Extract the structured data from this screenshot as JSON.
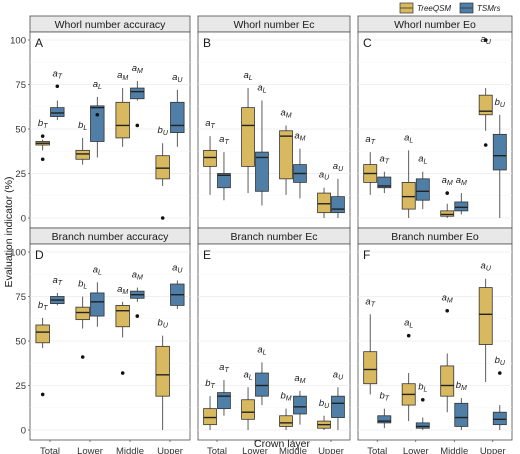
{
  "legend": [
    {
      "name": "TreeQSM",
      "color": "#d9b95f"
    },
    {
      "name": "TSMrs",
      "color": "#4f7fa6"
    }
  ],
  "chart_data": {
    "type": "boxplot",
    "xlabel": "Crown layer",
    "ylabel": "Evaluation indicator (%)",
    "categories": [
      "Total",
      "Lower",
      "Middle",
      "Upper"
    ],
    "yticks": [
      0,
      25,
      50,
      75,
      100
    ],
    "ylim": [
      0,
      100
    ],
    "legend_position": "top-right",
    "grid": true,
    "panels": [
      {
        "tag": "A",
        "title": "Whorl number accuracy",
        "boxes": [
          {
            "cat": "Total",
            "series": "TreeQSM",
            "lo": 38,
            "q1": 41,
            "med": 42,
            "q3": 43,
            "hi": 44,
            "outliers": [
              46,
              33
            ],
            "label": "bT"
          },
          {
            "cat": "Total",
            "series": "TSMrs",
            "lo": 55,
            "q1": 57,
            "med": 59,
            "q3": 62,
            "hi": 66,
            "outliers": [
              74
            ],
            "label": "aT"
          },
          {
            "cat": "Lower",
            "series": "TreeQSM",
            "lo": 30,
            "q1": 33,
            "med": 36,
            "q3": 38,
            "hi": 45,
            "outliers": [],
            "label": "bL"
          },
          {
            "cat": "Lower",
            "series": "TSMrs",
            "lo": 34,
            "q1": 43,
            "med": 62,
            "q3": 63,
            "hi": 68,
            "outliers": [
              58
            ],
            "label": "aL"
          },
          {
            "cat": "Middle",
            "series": "TreeQSM",
            "lo": 40,
            "q1": 45,
            "med": 52,
            "q3": 65,
            "hi": 73,
            "outliers": [],
            "label": "aM"
          },
          {
            "cat": "Middle",
            "series": "TSMrs",
            "lo": 66,
            "q1": 67,
            "med": 71,
            "q3": 73,
            "hi": 77,
            "outliers": [
              52
            ],
            "label": "aM"
          },
          {
            "cat": "Upper",
            "series": "TreeQSM",
            "lo": 18,
            "q1": 22,
            "med": 28,
            "q3": 35,
            "hi": 42,
            "outliers": [
              0
            ],
            "label": "bU"
          },
          {
            "cat": "Upper",
            "series": "TSMrs",
            "lo": 40,
            "q1": 48,
            "med": 52,
            "q3": 65,
            "hi": 72,
            "outliers": [],
            "label": "aU"
          }
        ]
      },
      {
        "tag": "B",
        "title": "Whorl number Ec",
        "boxes": [
          {
            "cat": "Total",
            "series": "TreeQSM",
            "lo": 13,
            "q1": 29,
            "med": 34,
            "q3": 38,
            "hi": 46,
            "outliers": [],
            "label": "aT"
          },
          {
            "cat": "Total",
            "series": "TSMrs",
            "lo": 10,
            "q1": 17,
            "med": 24,
            "q3": 25,
            "hi": 37,
            "outliers": [],
            "label": "aT"
          },
          {
            "cat": "Lower",
            "series": "TreeQSM",
            "lo": 14,
            "q1": 29,
            "med": 52,
            "q3": 62,
            "hi": 73,
            "outliers": [],
            "label": "aL"
          },
          {
            "cat": "Lower",
            "series": "TSMrs",
            "lo": 7,
            "q1": 15,
            "med": 34,
            "q3": 37,
            "hi": 66,
            "outliers": [],
            "label": "aL"
          },
          {
            "cat": "Middle",
            "series": "TreeQSM",
            "lo": 13,
            "q1": 22,
            "med": 46,
            "q3": 49,
            "hi": 52,
            "outliers": [],
            "label": "aM"
          },
          {
            "cat": "Middle",
            "series": "TSMrs",
            "lo": 11,
            "q1": 20,
            "med": 25,
            "q3": 30,
            "hi": 39,
            "outliers": [],
            "label": "aM"
          },
          {
            "cat": "Upper",
            "series": "TreeQSM",
            "lo": 0,
            "q1": 3,
            "med": 8,
            "q3": 14,
            "hi": 17,
            "outliers": [],
            "label": "aU"
          },
          {
            "cat": "Upper",
            "series": "TSMrs",
            "lo": 0,
            "q1": 3,
            "med": 5,
            "q3": 12,
            "hi": 22,
            "outliers": [],
            "label": "aU"
          }
        ]
      },
      {
        "tag": "C",
        "title": "Whorl number Eo",
        "boxes": [
          {
            "cat": "Total",
            "series": "TreeQSM",
            "lo": 13,
            "q1": 20,
            "med": 25,
            "q3": 30,
            "hi": 37,
            "outliers": [],
            "label": "aT"
          },
          {
            "cat": "Total",
            "series": "TSMrs",
            "lo": 14,
            "q1": 17,
            "med": 18,
            "q3": 23,
            "hi": 26,
            "outliers": [],
            "label": "aT"
          },
          {
            "cat": "Lower",
            "series": "TreeQSM",
            "lo": 0,
            "q1": 5,
            "med": 12,
            "q3": 20,
            "hi": 38,
            "outliers": [],
            "label": "aL"
          },
          {
            "cat": "Lower",
            "series": "TSMrs",
            "lo": 5,
            "q1": 10,
            "med": 15,
            "q3": 22,
            "hi": 26,
            "outliers": [],
            "label": "aL"
          },
          {
            "cat": "Middle",
            "series": "TreeQSM",
            "lo": 0,
            "q1": 1,
            "med": 2,
            "q3": 4,
            "hi": 8,
            "outliers": [
              14
            ],
            "label": "aM"
          },
          {
            "cat": "Middle",
            "series": "TSMrs",
            "lo": 2,
            "q1": 4,
            "med": 6,
            "q3": 9,
            "hi": 14,
            "outliers": [],
            "label": "aM"
          },
          {
            "cat": "Upper",
            "series": "TreeQSM",
            "lo": 49,
            "q1": 58,
            "med": 60,
            "q3": 69,
            "hi": 73,
            "outliers": [
              100,
              41
            ],
            "label": "aU"
          },
          {
            "cat": "Upper",
            "series": "TSMrs",
            "lo": 0,
            "q1": 27,
            "med": 35,
            "q3": 47,
            "hi": 58,
            "outliers": [],
            "label": "bU"
          }
        ]
      },
      {
        "tag": "D",
        "title": "Branch number accuracy",
        "boxes": [
          {
            "cat": "Total",
            "series": "TreeQSM",
            "lo": 46,
            "q1": 49,
            "med": 55,
            "q3": 59,
            "hi": 63,
            "outliers": [
              20
            ],
            "label": "bT"
          },
          {
            "cat": "Total",
            "series": "TSMrs",
            "lo": 70,
            "q1": 71,
            "med": 73,
            "q3": 75,
            "hi": 77,
            "outliers": [],
            "label": "aT"
          },
          {
            "cat": "Lower",
            "series": "TreeQSM",
            "lo": 57,
            "q1": 62,
            "med": 66,
            "q3": 69,
            "hi": 75,
            "outliers": [
              41
            ],
            "label": "bL"
          },
          {
            "cat": "Lower",
            "series": "TSMrs",
            "lo": 58,
            "q1": 64,
            "med": 72,
            "q3": 77,
            "hi": 83,
            "outliers": [],
            "label": "aL"
          },
          {
            "cat": "Middle",
            "series": "TreeQSM",
            "lo": 52,
            "q1": 58,
            "med": 67,
            "q3": 70,
            "hi": 72,
            "outliers": [
              32
            ],
            "label": "aM"
          },
          {
            "cat": "Middle",
            "series": "TSMrs",
            "lo": 72,
            "q1": 74,
            "med": 76,
            "q3": 78,
            "hi": 80,
            "outliers": [
              64
            ],
            "label": "aM"
          },
          {
            "cat": "Upper",
            "series": "TreeQSM",
            "lo": 0,
            "q1": 19,
            "med": 31,
            "q3": 47,
            "hi": 53,
            "outliers": [],
            "label": "bU"
          },
          {
            "cat": "Upper",
            "series": "TSMrs",
            "lo": 68,
            "q1": 70,
            "med": 76,
            "q3": 82,
            "hi": 84,
            "outliers": [],
            "label": "aU"
          }
        ]
      },
      {
        "tag": "E",
        "title": "Branch number Ec",
        "boxes": [
          {
            "cat": "Total",
            "series": "TreeQSM",
            "lo": 0,
            "q1": 3,
            "med": 7,
            "q3": 12,
            "hi": 19,
            "outliers": [],
            "label": "bT"
          },
          {
            "cat": "Total",
            "series": "TSMrs",
            "lo": 8,
            "q1": 12,
            "med": 19,
            "q3": 21,
            "hi": 28,
            "outliers": [],
            "label": "aT"
          },
          {
            "cat": "Lower",
            "series": "TreeQSM",
            "lo": 0,
            "q1": 6,
            "med": 10,
            "q3": 17,
            "hi": 24,
            "outliers": [],
            "label": "aL"
          },
          {
            "cat": "Lower",
            "series": "TSMrs",
            "lo": 14,
            "q1": 19,
            "med": 25,
            "q3": 32,
            "hi": 38,
            "outliers": [],
            "label": "aL"
          },
          {
            "cat": "Middle",
            "series": "TreeQSM",
            "lo": 0,
            "q1": 2,
            "med": 4,
            "q3": 8,
            "hi": 12,
            "outliers": [],
            "label": "bM"
          },
          {
            "cat": "Middle",
            "series": "TSMrs",
            "lo": 3,
            "q1": 9,
            "med": 13,
            "q3": 19,
            "hi": 22,
            "outliers": [],
            "label": "aM"
          },
          {
            "cat": "Upper",
            "series": "TreeQSM",
            "lo": 0,
            "q1": 1,
            "med": 3,
            "q3": 5,
            "hi": 8,
            "outliers": [],
            "label": "bU"
          },
          {
            "cat": "Upper",
            "series": "TSMrs",
            "lo": 0,
            "q1": 7,
            "med": 15,
            "q3": 19,
            "hi": 24,
            "outliers": [],
            "label": "aU"
          }
        ]
      },
      {
        "tag": "F",
        "title": "Branch number Eo",
        "boxes": [
          {
            "cat": "Total",
            "series": "TreeQSM",
            "lo": 20,
            "q1": 26,
            "med": 34,
            "q3": 44,
            "hi": 65,
            "outliers": [],
            "label": "aT"
          },
          {
            "cat": "Total",
            "series": "TSMrs",
            "lo": 1,
            "q1": 4,
            "med": 5,
            "q3": 8,
            "hi": 12,
            "outliers": [],
            "label": "bT"
          },
          {
            "cat": "Lower",
            "series": "TreeQSM",
            "lo": 5,
            "q1": 14,
            "med": 20,
            "q3": 26,
            "hi": 32,
            "outliers": [
              53
            ],
            "label": "aL"
          },
          {
            "cat": "Lower",
            "series": "TSMrs",
            "lo": 0,
            "q1": 1,
            "med": 2,
            "q3": 4,
            "hi": 7,
            "outliers": [
              17
            ],
            "label": "bL"
          },
          {
            "cat": "Middle",
            "series": "TreeQSM",
            "lo": 10,
            "q1": 19,
            "med": 25,
            "q3": 36,
            "hi": 43,
            "outliers": [
              67
            ],
            "label": "aM"
          },
          {
            "cat": "Middle",
            "series": "TSMrs",
            "lo": 0,
            "q1": 2,
            "med": 7,
            "q3": 15,
            "hi": 18,
            "outliers": [],
            "label": "bM"
          },
          {
            "cat": "Upper",
            "series": "TreeQSM",
            "lo": 27,
            "q1": 48,
            "med": 65,
            "q3": 80,
            "hi": 85,
            "outliers": [],
            "label": "aU"
          },
          {
            "cat": "Upper",
            "series": "TSMrs",
            "lo": 0,
            "q1": 3,
            "med": 6,
            "q3": 10,
            "hi": 14,
            "outliers": [
              32
            ],
            "label": "bU"
          }
        ]
      }
    ]
  }
}
